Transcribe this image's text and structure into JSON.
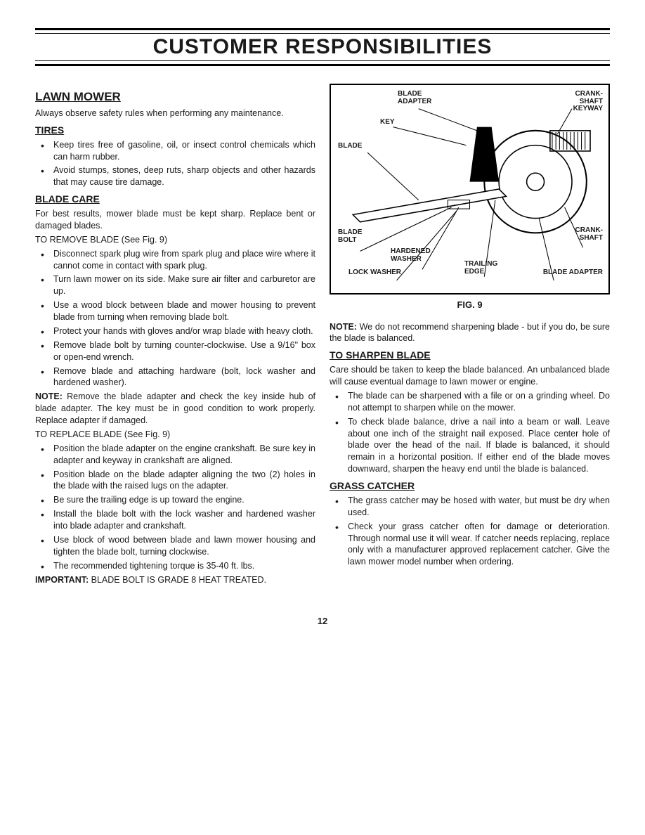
{
  "page": {
    "title": "CUSTOMER RESPONSIBILITIES",
    "number": "12"
  },
  "left_column": {
    "h_lawn_mower": "LAWN MOWER",
    "p_lawn_mower": "Always observe safety rules when performing any maintenance.",
    "h_tires": "TIRES",
    "tires_items": [
      "Keep tires free of gasoline, oil, or insect control chemicals which can harm rubber.",
      "Avoid stumps, stones, deep ruts, sharp objects and other hazards that may cause tire damage."
    ],
    "h_blade_care": "BLADE CARE",
    "p_blade_care": "For best results, mower blade must be kept sharp. Replace bent or damaged blades.",
    "p_remove_blade": "TO REMOVE BLADE (See Fig. 9)",
    "remove_items": [
      "Disconnect spark plug wire from spark plug and place wire where it cannot come in contact with spark plug.",
      "Turn lawn mower on its side. Make sure air filter and carburetor are up.",
      "Use a wood block between blade and mower housing to prevent blade from turning when removing blade bolt.",
      "Protect your hands with gloves and/or wrap blade with heavy cloth.",
      "Remove blade bolt by turning counter-clockwise. Use a 9/16\" box or open-end wrench.",
      "Remove blade and attaching hardware (bolt, lock washer and hardened washer)."
    ],
    "note1_label": "NOTE:",
    "note1_text": " Remove the blade adapter and check the key inside hub of blade adapter. The key must be in good condition to work properly. Replace adapter if damaged.",
    "p_replace_blade": "TO REPLACE BLADE (See Fig. 9)",
    "replace_items": [
      "Position the blade adapter on the engine crankshaft. Be sure key in adapter and keyway in crankshaft are aligned.",
      "Position blade on the blade adapter aligning the two (2) holes in the blade with the raised lugs on the adapter.",
      "Be sure the trailing edge is up toward the engine.",
      "Install the blade bolt with the lock washer and hardened washer into blade adapter and crankshaft.",
      "Use block of wood between blade and lawn mower housing and tighten the blade bolt, turning clockwise.",
      "The recommended tightening torque is 35-40 ft. lbs."
    ],
    "imp_label": "IMPORTANT:",
    "imp_text": " BLADE BOLT IS GRADE 8 HEAT TREATED."
  },
  "right_column": {
    "figure": {
      "caption": "FIG. 9",
      "labels": {
        "blade_adapter_top": "BLADE\nADAPTER",
        "crank_shaft_keyway": "CRANK-\nSHAFT\nKEYWAY",
        "key": "KEY",
        "blade": "BLADE",
        "blade_bolt": "BLADE\nBOLT",
        "hardened_washer": "HARDENED\nWASHER",
        "lock_washer": "LOCK WASHER",
        "trailing_edge": "TRAILING\nEDGE",
        "crank_shaft": "CRANK-\nSHAFT",
        "blade_adapter_bottom": "BLADE ADAPTER"
      }
    },
    "note2_label": "NOTE:",
    "note2_text": " We do not recommend sharpening blade - but if you do, be sure the blade is balanced.",
    "h_sharpen": "TO SHARPEN BLADE",
    "p_sharpen": "Care should be taken to keep the blade balanced. An unbalanced blade will cause eventual damage to lawn mower or engine.",
    "sharpen_items": [
      "The blade can be sharpened with a file or on a grinding wheel. Do not attempt to sharpen while on the mower.",
      "To check blade balance, drive a nail into a beam or wall. Leave about one inch of the straight nail exposed. Place center hole of blade over the head of the nail. If blade is balanced, it should remain in a horizontal position. If either end of the blade moves downward, sharpen the heavy end until the blade is balanced."
    ],
    "h_grass": "GRASS CATCHER",
    "grass_items": [
      "The grass catcher may be hosed with water, but must be dry when used.",
      "Check your grass catcher often for damage or deterioration. Through normal use it will wear. If catcher needs replacing, replace only with a manufacturer approved replacement catcher. Give the lawn mower model number when ordering."
    ]
  }
}
